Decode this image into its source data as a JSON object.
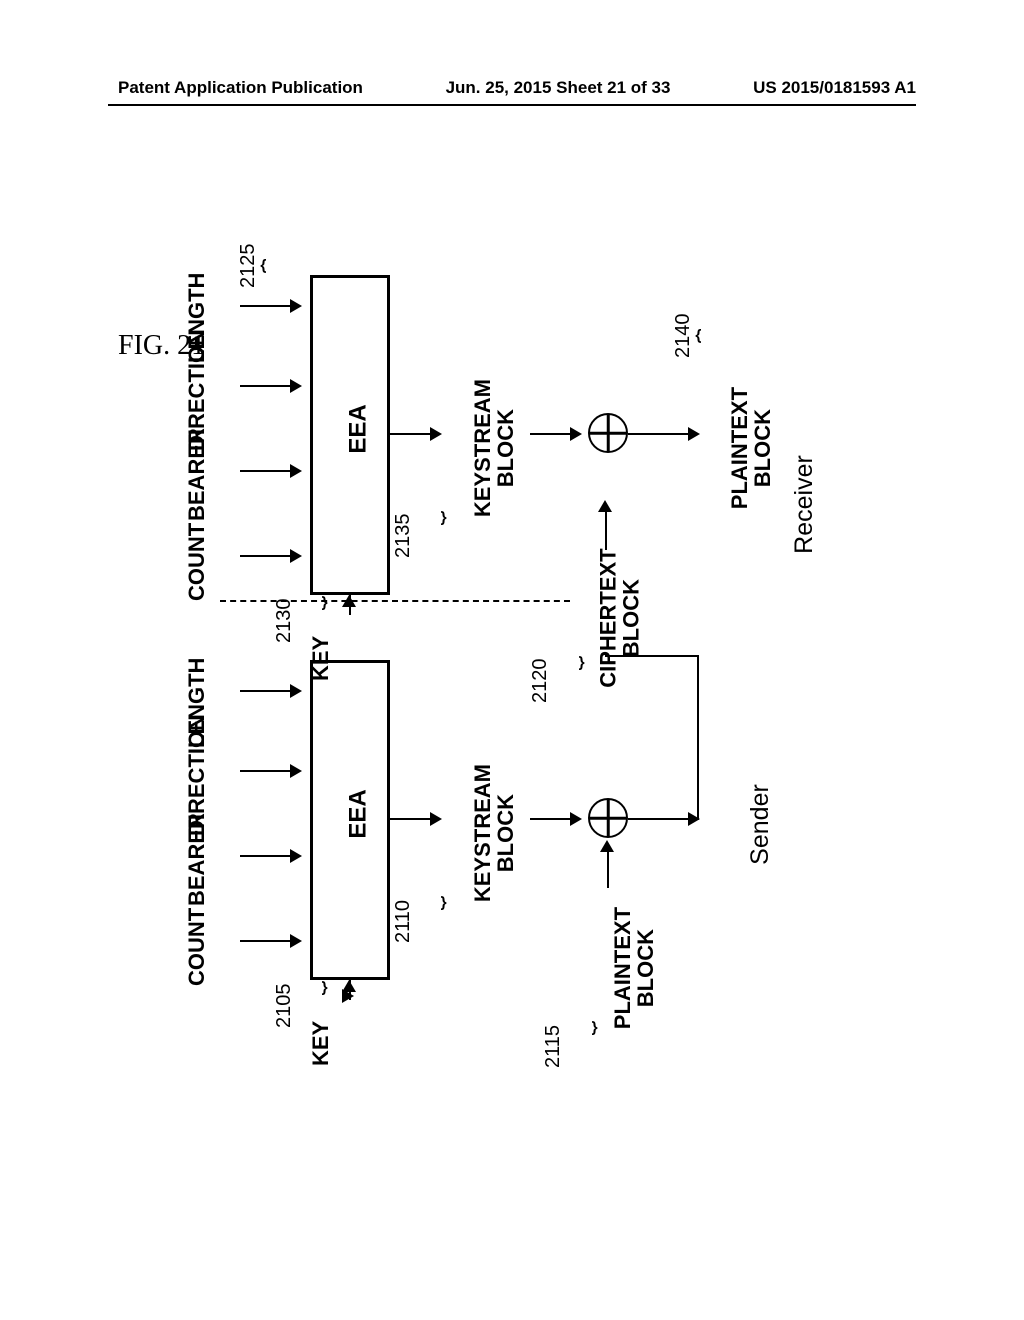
{
  "header": {
    "left": "Patent Application Publication",
    "center": "Jun. 25, 2015  Sheet 21 of 33",
    "right": "US 2015/0181593 A1"
  },
  "figure_label": "FIG. 21",
  "inputs": {
    "count": "COUNT",
    "bearer": "BEARER",
    "direction": "DIRECTION",
    "length": "LENGTH",
    "key": "KEY"
  },
  "blocks": {
    "eea": "EEA",
    "keystream": "KEYSTREAM\nBLOCK",
    "plaintext": "PLAINTEXT\nBLOCK",
    "ciphertext": "CIPHERTEXT\nBLOCK"
  },
  "roles": {
    "sender": "Sender",
    "receiver": "Receiver"
  },
  "refs": {
    "sender_eea": "2105",
    "sender_ks": "2110",
    "sender_pt": "2115",
    "ciphertext": "2120",
    "rcv_length": "2125",
    "rcv_key": "2130",
    "rcv_ks": "2135",
    "rcv_pt": "2140"
  },
  "style": {
    "page_bg": "#ffffff",
    "stroke": "#000000",
    "stroke_width": 3,
    "font_bold_size": 22,
    "fig_font_size": 28
  }
}
